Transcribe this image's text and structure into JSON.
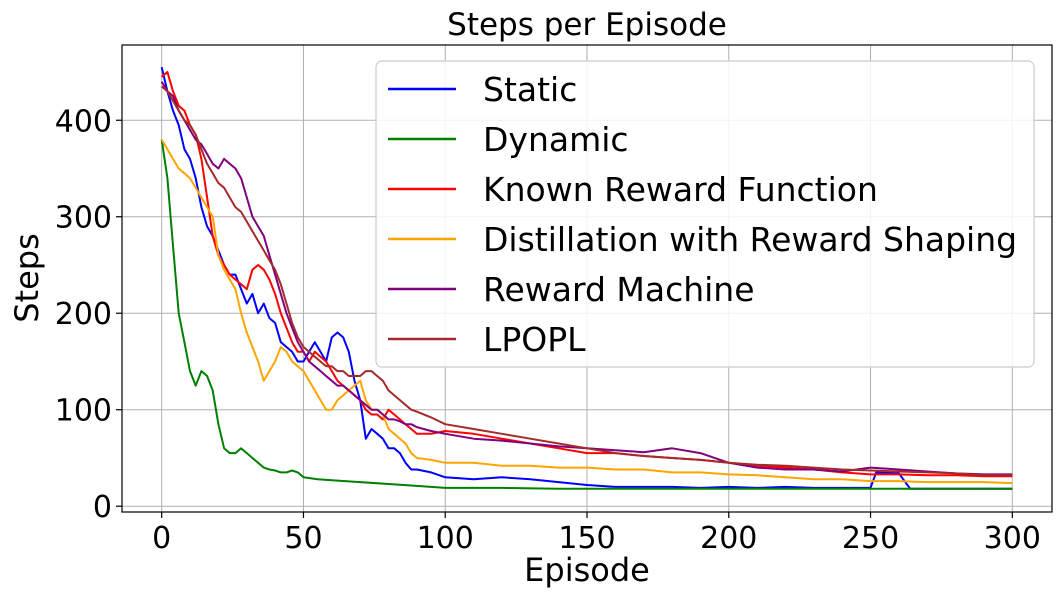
{
  "chart_data": {
    "type": "line",
    "title": "Steps per Episode",
    "xlabel": "Episode",
    "ylabel": "Steps",
    "xlim": [
      -14,
      314
    ],
    "ylim": [
      -6,
      478
    ],
    "xticks": [
      0,
      50,
      100,
      150,
      200,
      250,
      300
    ],
    "yticks": [
      0,
      100,
      200,
      300,
      400
    ],
    "grid": true,
    "legend_position": "top-right",
    "series": [
      {
        "name": "Static",
        "color": "#0000ff",
        "x": [
          0,
          2,
          4,
          6,
          8,
          10,
          12,
          14,
          16,
          18,
          20,
          22,
          24,
          26,
          28,
          30,
          32,
          34,
          36,
          38,
          40,
          42,
          44,
          46,
          48,
          50,
          52,
          54,
          56,
          58,
          60,
          62,
          64,
          66,
          68,
          70,
          72,
          74,
          76,
          78,
          80,
          82,
          84,
          86,
          88,
          90,
          95,
          100,
          110,
          120,
          130,
          140,
          150,
          160,
          170,
          180,
          190,
          200,
          210,
          220,
          230,
          240,
          250,
          252,
          260,
          264,
          270,
          280,
          290,
          300
        ],
        "y": [
          455,
          430,
          410,
          395,
          370,
          360,
          340,
          310,
          290,
          280,
          265,
          250,
          240,
          240,
          225,
          210,
          220,
          200,
          210,
          195,
          190,
          170,
          165,
          160,
          150,
          150,
          160,
          170,
          160,
          150,
          175,
          180,
          175,
          160,
          130,
          110,
          70,
          80,
          75,
          70,
          60,
          60,
          55,
          45,
          38,
          38,
          35,
          30,
          28,
          30,
          28,
          25,
          22,
          20,
          20,
          20,
          19,
          20,
          19,
          20,
          19,
          19,
          19,
          35,
          34,
          18,
          18,
          18,
          18,
          18
        ]
      },
      {
        "name": "Dynamic",
        "color": "#008000",
        "x": [
          0,
          2,
          4,
          6,
          8,
          10,
          12,
          14,
          16,
          18,
          20,
          22,
          24,
          26,
          28,
          30,
          32,
          34,
          36,
          38,
          40,
          42,
          44,
          46,
          48,
          50,
          55,
          60,
          70,
          80,
          90,
          100,
          120,
          140,
          160,
          180,
          200,
          220,
          240,
          260,
          280,
          300
        ],
        "y": [
          380,
          340,
          270,
          200,
          170,
          140,
          125,
          140,
          135,
          120,
          85,
          60,
          55,
          55,
          60,
          55,
          50,
          45,
          40,
          38,
          37,
          35,
          35,
          37,
          35,
          30,
          28,
          27,
          25,
          23,
          21,
          19,
          19,
          18,
          18,
          18,
          18,
          18,
          18,
          18,
          18,
          18
        ]
      },
      {
        "name": "Known Reward Function",
        "color": "#ff0000",
        "x": [
          0,
          2,
          4,
          6,
          8,
          10,
          12,
          14,
          16,
          18,
          20,
          22,
          24,
          26,
          28,
          30,
          32,
          34,
          36,
          38,
          40,
          42,
          44,
          46,
          48,
          50,
          52,
          54,
          56,
          58,
          60,
          62,
          64,
          66,
          68,
          70,
          72,
          74,
          76,
          78,
          80,
          82,
          84,
          86,
          88,
          90,
          95,
          100,
          110,
          120,
          130,
          140,
          150,
          160,
          170,
          180,
          190,
          200,
          210,
          220,
          230,
          240,
          250,
          260,
          270,
          280,
          290,
          300
        ],
        "y": [
          445,
          450,
          430,
          415,
          410,
          395,
          385,
          360,
          320,
          280,
          260,
          250,
          240,
          235,
          230,
          225,
          245,
          250,
          245,
          235,
          220,
          200,
          185,
          170,
          160,
          160,
          150,
          160,
          155,
          150,
          140,
          130,
          125,
          120,
          115,
          110,
          100,
          95,
          95,
          90,
          100,
          95,
          90,
          85,
          80,
          75,
          75,
          78,
          75,
          70,
          65,
          60,
          55,
          55,
          52,
          50,
          48,
          45,
          42,
          40,
          38,
          35,
          33,
          33,
          32,
          32,
          31,
          31
        ]
      },
      {
        "name": "Distillation with Reward Shaping",
        "color": "#ffa500",
        "x": [
          0,
          2,
          4,
          6,
          8,
          10,
          12,
          14,
          16,
          18,
          20,
          22,
          24,
          26,
          28,
          30,
          32,
          34,
          36,
          38,
          40,
          42,
          44,
          46,
          48,
          50,
          52,
          54,
          56,
          58,
          60,
          62,
          64,
          66,
          68,
          70,
          72,
          74,
          76,
          78,
          80,
          82,
          84,
          86,
          88,
          90,
          95,
          100,
          110,
          120,
          130,
          140,
          150,
          160,
          170,
          180,
          190,
          200,
          210,
          220,
          230,
          240,
          250,
          260,
          270,
          280,
          290,
          300
        ],
        "y": [
          380,
          370,
          360,
          350,
          345,
          340,
          330,
          320,
          310,
          300,
          260,
          245,
          235,
          225,
          200,
          180,
          165,
          150,
          130,
          140,
          150,
          165,
          160,
          150,
          145,
          140,
          130,
          120,
          110,
          100,
          100,
          110,
          115,
          120,
          125,
          130,
          110,
          100,
          100,
          95,
          80,
          75,
          70,
          65,
          55,
          50,
          48,
          45,
          45,
          42,
          42,
          40,
          40,
          38,
          38,
          35,
          35,
          33,
          32,
          30,
          28,
          28,
          26,
          26,
          25,
          25,
          25,
          24
        ]
      },
      {
        "name": "Reward Machine",
        "color": "#800080",
        "x": [
          0,
          2,
          4,
          6,
          8,
          10,
          12,
          14,
          16,
          18,
          20,
          22,
          24,
          26,
          28,
          30,
          32,
          34,
          36,
          38,
          40,
          42,
          44,
          46,
          48,
          50,
          52,
          54,
          56,
          58,
          60,
          62,
          64,
          66,
          68,
          70,
          72,
          74,
          76,
          78,
          80,
          82,
          84,
          86,
          88,
          90,
          95,
          100,
          110,
          120,
          130,
          140,
          150,
          160,
          170,
          180,
          190,
          200,
          210,
          220,
          230,
          240,
          250,
          260,
          270,
          280,
          290,
          300
        ],
        "y": [
          440,
          430,
          425,
          410,
          400,
          390,
          380,
          375,
          365,
          355,
          350,
          360,
          355,
          350,
          340,
          320,
          300,
          290,
          280,
          260,
          240,
          220,
          200,
          185,
          170,
          160,
          150,
          145,
          140,
          135,
          130,
          125,
          125,
          120,
          115,
          110,
          105,
          100,
          100,
          95,
          90,
          90,
          88,
          85,
          85,
          82,
          78,
          75,
          70,
          68,
          65,
          62,
          60,
          58,
          56,
          60,
          55,
          45,
          40,
          38,
          38,
          36,
          40,
          38,
          36,
          34,
          33,
          33
        ]
      },
      {
        "name": "LPOPL",
        "color": "#a52a2a",
        "x": [
          0,
          2,
          4,
          6,
          8,
          10,
          12,
          14,
          16,
          18,
          20,
          22,
          24,
          26,
          28,
          30,
          32,
          34,
          36,
          38,
          40,
          42,
          44,
          46,
          48,
          50,
          52,
          54,
          56,
          58,
          60,
          62,
          64,
          66,
          68,
          70,
          72,
          74,
          76,
          78,
          80,
          82,
          84,
          86,
          88,
          90,
          95,
          100,
          110,
          120,
          130,
          140,
          150,
          160,
          170,
          180,
          190,
          200,
          210,
          220,
          230,
          240,
          250,
          260,
          270,
          280,
          290,
          300
        ],
        "y": [
          435,
          430,
          420,
          410,
          400,
          395,
          385,
          370,
          355,
          345,
          335,
          330,
          320,
          310,
          305,
          295,
          285,
          275,
          265,
          255,
          245,
          230,
          210,
          190,
          175,
          165,
          160,
          155,
          150,
          145,
          145,
          140,
          140,
          135,
          135,
          135,
          140,
          140,
          135,
          130,
          120,
          115,
          110,
          105,
          100,
          98,
          92,
          85,
          80,
          75,
          70,
          65,
          60,
          55,
          52,
          50,
          48,
          45,
          43,
          42,
          40,
          38,
          37,
          36,
          35,
          34,
          32,
          32
        ]
      }
    ]
  }
}
